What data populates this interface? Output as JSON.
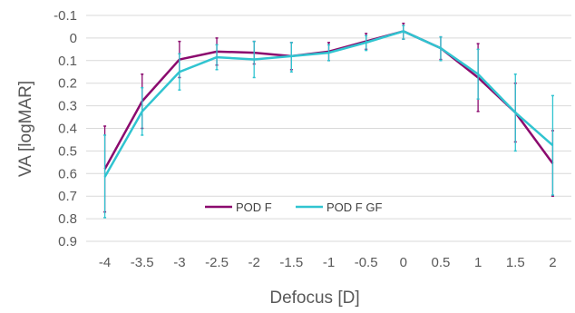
{
  "chart_data": {
    "type": "line",
    "xlabel": "Defocus [D]",
    "ylabel": "VA [logMAR]",
    "x": [
      -4,
      -3.5,
      -3,
      -2.5,
      -2,
      -1.5,
      -1,
      -0.5,
      0,
      0.5,
      1,
      1.5,
      2
    ],
    "x_tick_labels": [
      "-4",
      "-3.5",
      "-3",
      "-2.5",
      "-2",
      "-1.5",
      "-1",
      "-0.5",
      "0",
      "0.5",
      "1",
      "1.5",
      "2"
    ],
    "ylim": [
      -0.1,
      0.9
    ],
    "y_inverted": true,
    "y_ticks": [
      -0.1,
      0,
      0.1,
      0.2,
      0.3,
      0.4,
      0.5,
      0.6,
      0.7,
      0.8,
      0.9
    ],
    "y_tick_labels": [
      "-0.1",
      "0",
      "0.1",
      "0.2",
      "0.3",
      "0.4",
      "0.5",
      "0.6",
      "0.7",
      "0.8",
      "0.9"
    ],
    "grid": true,
    "legend_position": "inside-bottom-center",
    "series": [
      {
        "name": "POD F",
        "color": "#8b0a6e",
        "values": [
          0.58,
          0.28,
          0.095,
          0.06,
          0.065,
          0.08,
          0.06,
          0.015,
          -0.03,
          0.045,
          0.175,
          0.33,
          0.555
        ],
        "error_low": [
          0.39,
          0.16,
          0.015,
          0.0,
          0.015,
          0.02,
          0.02,
          -0.02,
          -0.065,
          -0.005,
          0.025,
          0.2,
          0.41
        ],
        "error_high": [
          0.77,
          0.4,
          0.175,
          0.12,
          0.115,
          0.14,
          0.1,
          0.05,
          0.005,
          0.095,
          0.325,
          0.46,
          0.7
        ]
      },
      {
        "name": "POD F GF",
        "color": "#30c4d0",
        "values": [
          0.615,
          0.325,
          0.15,
          0.085,
          0.095,
          0.08,
          0.065,
          0.02,
          -0.03,
          0.045,
          0.16,
          0.33,
          0.475
        ],
        "error_low": [
          0.43,
          0.22,
          0.07,
          0.03,
          0.015,
          0.02,
          0.03,
          -0.01,
          -0.055,
          -0.005,
          0.05,
          0.16,
          0.255
        ],
        "error_high": [
          0.795,
          0.43,
          0.23,
          0.14,
          0.175,
          0.15,
          0.1,
          0.055,
          0.005,
          0.1,
          0.27,
          0.5,
          0.695
        ]
      }
    ]
  }
}
